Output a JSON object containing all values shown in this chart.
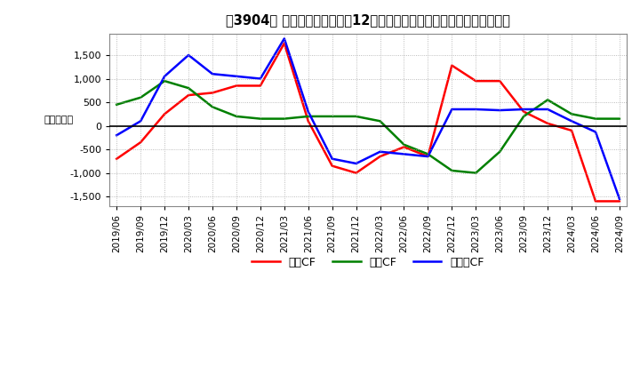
{
  "title": "［3904］ キャッシュフローの12か月移動合計の対前年同期増減額の推移",
  "ylabel": "（百万円）",
  "ylim": [
    -1700,
    1950
  ],
  "yticks": [
    -1500,
    -1000,
    -500,
    0,
    500,
    1000,
    1500
  ],
  "background_color": "#ffffff",
  "plot_bg_color": "#ffffff",
  "grid_color": "#aaaaaa",
  "dates": [
    "2019/06",
    "2019/09",
    "2019/12",
    "2020/03",
    "2020/06",
    "2020/09",
    "2020/12",
    "2021/03",
    "2021/06",
    "2021/09",
    "2021/12",
    "2022/03",
    "2022/06",
    "2022/09",
    "2022/12",
    "2023/03",
    "2023/06",
    "2023/09",
    "2023/12",
    "2024/03",
    "2024/06",
    "2024/09"
  ],
  "operating_cf": [
    -700,
    -350,
    250,
    650,
    700,
    850,
    850,
    1750,
    100,
    -850,
    -1000,
    -650,
    -450,
    -650,
    1280,
    950,
    950,
    300,
    50,
    -100,
    -1600,
    -1600
  ],
  "investing_cf": [
    450,
    600,
    950,
    800,
    400,
    200,
    150,
    150,
    200,
    200,
    200,
    100,
    -400,
    -600,
    -950,
    -1000,
    -550,
    200,
    550,
    250,
    150,
    150
  ],
  "free_cf": [
    -200,
    100,
    1050,
    1500,
    1100,
    1050,
    1000,
    1850,
    300,
    -700,
    -800,
    -550,
    -600,
    -650,
    350,
    350,
    330,
    350,
    350,
    100,
    -130,
    -1550
  ],
  "operating_color": "#ff0000",
  "investing_color": "#008000",
  "free_color": "#0000ff",
  "legend_labels": [
    "営業CF",
    "投賃CF",
    "フリーCF"
  ]
}
